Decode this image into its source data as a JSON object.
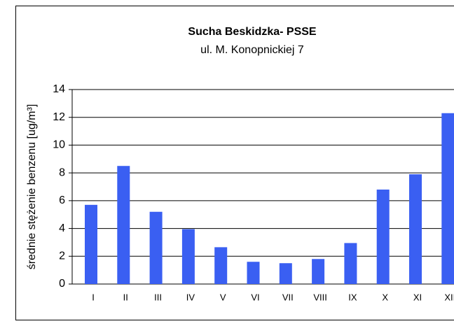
{
  "chart_data": {
    "type": "bar",
    "title": "Sucha Beskidzka- PSSE",
    "subtitle": "ul. M. Konopnickiej 7",
    "y_label": "średnie stężenie benzenu  [ug/m³]",
    "categories": [
      "I",
      "II",
      "III",
      "IV",
      "V",
      "VI",
      "VII",
      "VIII",
      "IX",
      "X",
      "XI",
      "XII"
    ],
    "values": [
      5.7,
      8.5,
      5.2,
      3.95,
      2.65,
      1.6,
      1.5,
      1.8,
      2.95,
      6.8,
      7.9,
      12.3
    ],
    "color": "#3a5ff2",
    "ylim": [
      0,
      14
    ],
    "yticks": [
      0,
      2,
      4,
      6,
      8,
      10,
      12,
      14
    ],
    "grid": true
  }
}
